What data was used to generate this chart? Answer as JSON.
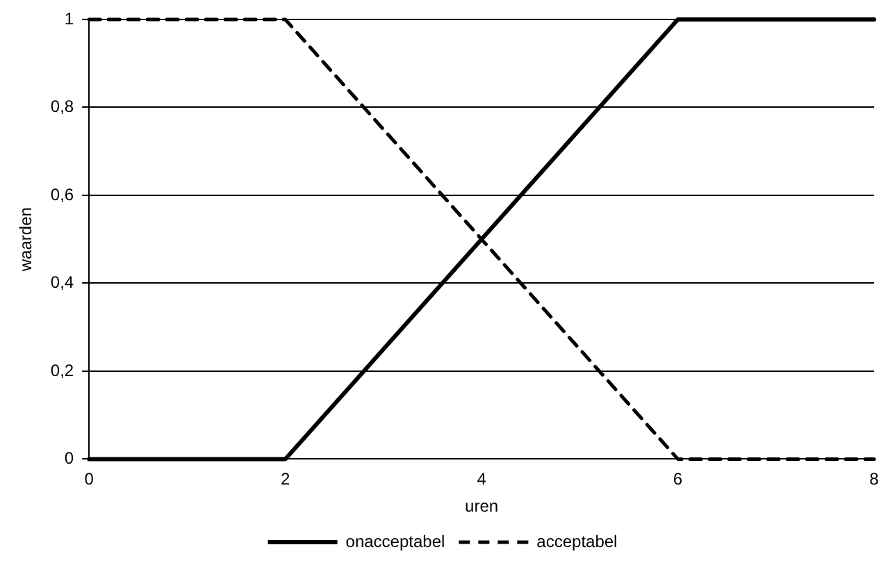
{
  "chart_data": {
    "type": "line",
    "xlabel": "uren",
    "ylabel": "waarden",
    "xlim": [
      0,
      8
    ],
    "xticks": [
      0,
      2,
      4,
      6,
      8
    ],
    "ylim": [
      0,
      1
    ],
    "yticks": [
      0,
      {
        "value": 0.2,
        "label": "0,2"
      },
      {
        "value": 0.4,
        "label": "0,4"
      },
      {
        "value": 0.6,
        "label": "0,6"
      },
      {
        "value": 0.8,
        "label": "0,8"
      },
      1
    ],
    "grid": "y",
    "legend": "bottom",
    "marker": "none",
    "series": [
      {
        "name": "onacceptabel",
        "color": "#000000",
        "x": [
          0,
          2,
          6,
          8
        ],
        "values": [
          0,
          0,
          1,
          1
        ],
        "line_style": "solid"
      },
      {
        "name": "acceptabel",
        "color": "#000000",
        "x": [
          0,
          2,
          6,
          8
        ],
        "values": [
          1,
          1,
          0,
          0
        ],
        "line_style": "dashed"
      }
    ]
  }
}
